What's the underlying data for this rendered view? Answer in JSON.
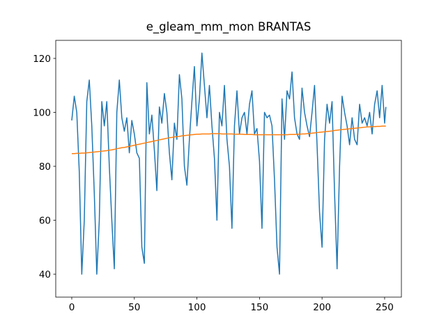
{
  "chart_data": {
    "type": "line",
    "title": "e_gleam_mm_mon BRANTAS",
    "x": [
      0,
      2,
      4,
      6,
      8,
      10,
      12,
      14,
      16,
      18,
      20,
      22,
      24,
      26,
      28,
      30,
      32,
      34,
      36,
      38,
      40,
      42,
      44,
      46,
      48,
      50,
      52,
      54,
      56,
      58,
      60,
      62,
      64,
      66,
      68,
      70,
      72,
      74,
      76,
      78,
      80,
      82,
      84,
      86,
      88,
      90,
      92,
      94,
      96,
      98,
      100,
      102,
      104,
      106,
      108,
      110,
      112,
      114,
      116,
      118,
      120,
      122,
      124,
      126,
      128,
      130,
      132,
      134,
      136,
      138,
      140,
      142,
      144,
      146,
      148,
      150,
      152,
      154,
      156,
      158,
      160,
      162,
      164,
      166,
      168,
      170,
      172,
      174,
      176,
      178,
      180,
      182,
      184,
      186,
      188,
      190,
      192,
      194,
      196,
      198,
      200,
      202,
      204,
      206,
      208,
      210,
      212,
      214,
      216,
      218,
      220,
      222,
      224,
      226,
      228,
      230,
      232,
      234,
      236,
      238,
      240,
      242,
      244,
      246,
      248,
      250,
      251
    ],
    "series": [
      {
        "color": "#1f77b4",
        "values": [
          97,
          106,
          100,
          78,
          40,
          60,
          104,
          112,
          95,
          70,
          40,
          60,
          104,
          95,
          104,
          80,
          60,
          42,
          100,
          112,
          98,
          93,
          98,
          85,
          97,
          92,
          85,
          83,
          50,
          44,
          111,
          92,
          99,
          86,
          71,
          102,
          96,
          107,
          100,
          85,
          75,
          96,
          90,
          114,
          105,
          80,
          73,
          90,
          104,
          117,
          95,
          105,
          122,
          110,
          98,
          110,
          95,
          83,
          60,
          100,
          95,
          110,
          90,
          80,
          57,
          95,
          108,
          92,
          98,
          100,
          92,
          103,
          108,
          92,
          94,
          82,
          57,
          100,
          98,
          99,
          95,
          75,
          50,
          40,
          105,
          90,
          108,
          105,
          115,
          98,
          92,
          90,
          109,
          100,
          95,
          91,
          100,
          110,
          88,
          63,
          50,
          90,
          103,
          96,
          104,
          70,
          42,
          80,
          106,
          100,
          95,
          88,
          98,
          90,
          88,
          103,
          96,
          98,
          95,
          100,
          92,
          103,
          108,
          98,
          110,
          96,
          102
        ]
      },
      {
        "color": "#ff7f0e",
        "values": [
          84.7,
          84.7,
          84.8,
          84.8,
          84.9,
          84.9,
          85.0,
          85.1,
          85.2,
          85.3,
          85.4,
          85.5,
          85.6,
          85.7,
          85.8,
          86.0,
          86.1,
          86.3,
          86.5,
          86.7,
          86.9,
          87.0,
          87.2,
          87.4,
          87.6,
          87.8,
          88.0,
          88.2,
          88.4,
          88.6,
          88.8,
          89.0,
          89.2,
          89.4,
          89.6,
          89.8,
          90.0,
          90.2,
          90.4,
          90.6,
          90.7,
          90.9,
          91.0,
          91.1,
          91.3,
          91.4,
          91.5,
          91.6,
          91.7,
          91.8,
          91.9,
          91.9,
          92.0,
          92.0,
          92.0,
          92.0,
          92.1,
          92.1,
          92.1,
          92.1,
          92.0,
          92.0,
          92.0,
          92.0,
          92.0,
          91.9,
          91.9,
          91.9,
          91.9,
          91.8,
          91.8,
          91.8,
          91.8,
          91.7,
          91.7,
          91.7,
          91.7,
          91.7,
          91.7,
          91.7,
          91.7,
          91.7,
          91.7,
          91.7,
          91.7,
          91.7,
          91.7,
          91.8,
          91.8,
          91.8,
          91.9,
          91.9,
          92.0,
          92.0,
          92.1,
          92.2,
          92.3,
          92.4,
          92.5,
          92.6,
          92.7,
          92.8,
          92.9,
          93.0,
          93.1,
          93.3,
          93.4,
          93.5,
          93.6,
          93.7,
          93.8,
          93.9,
          94.0,
          94.1,
          94.2,
          94.3,
          94.4,
          94.5,
          94.6,
          94.6,
          94.7,
          94.7,
          94.8,
          94.8,
          94.9,
          94.9,
          94.9
        ]
      }
    ],
    "xlim": [
      -12.8,
      263.4
    ],
    "ylim": [
      31.5,
      126.7
    ],
    "xticks": [
      0,
      50,
      100,
      150,
      200,
      250
    ],
    "yticks": [
      40,
      60,
      80,
      100,
      120
    ]
  }
}
